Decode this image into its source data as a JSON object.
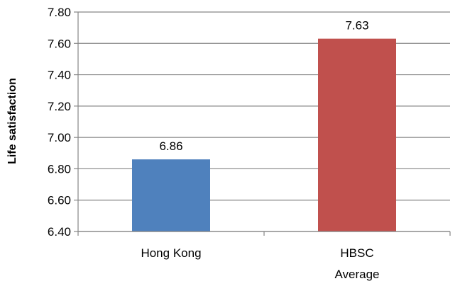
{
  "chart_data": {
    "type": "bar",
    "categories": [
      [
        "Hong Kong"
      ],
      [
        "HBSC",
        "Average"
      ]
    ],
    "values": [
      6.86,
      7.63
    ],
    "value_labels": [
      "6.86",
      "7.63"
    ],
    "colors": [
      "#4f81bd",
      "#c0504d"
    ],
    "title": "",
    "xlabel": "",
    "ylabel": "Life satisfaction",
    "ylim": [
      6.4,
      7.8
    ],
    "yticks": [
      "6.40",
      "6.60",
      "6.80",
      "7.00",
      "7.20",
      "7.40",
      "7.60",
      "7.80"
    ],
    "grid": true,
    "legend": "none"
  }
}
